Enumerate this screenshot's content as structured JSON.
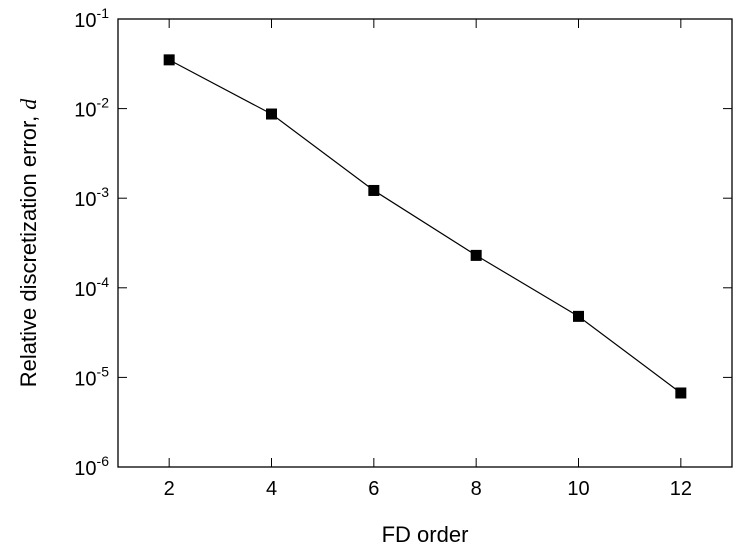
{
  "chart_data": {
    "type": "line",
    "xlabel": "FD order",
    "ylabel": "Relative discretization error,",
    "ylabel_symbol": "d",
    "x": [
      2,
      4,
      6,
      8,
      10,
      12
    ],
    "series": [
      {
        "values": [
          0.035,
          0.0087,
          0.00122,
          0.00023,
          4.8e-05,
          6.7e-06
        ],
        "marker": "square",
        "color": "#000000"
      }
    ],
    "xlim": [
      1,
      13
    ],
    "ylim": [
      1e-06,
      0.1
    ],
    "yscale": "log",
    "x_ticks": [
      2,
      4,
      6,
      8,
      10,
      12
    ],
    "x_tick_labels": [
      "2",
      "4",
      "6",
      "8",
      "10",
      "12"
    ],
    "y_ticks": [
      {
        "value": 0.1,
        "base": "10",
        "exp": "-1"
      },
      {
        "value": 0.01,
        "base": "10",
        "exp": "-2"
      },
      {
        "value": 0.001,
        "base": "10",
        "exp": "-3"
      },
      {
        "value": 0.0001,
        "base": "10",
        "exp": "-4"
      },
      {
        "value": 1e-05,
        "base": "10",
        "exp": "-5"
      },
      {
        "value": 1e-06,
        "base": "10",
        "exp": "-6"
      }
    ],
    "grid": false,
    "legend": false
  }
}
